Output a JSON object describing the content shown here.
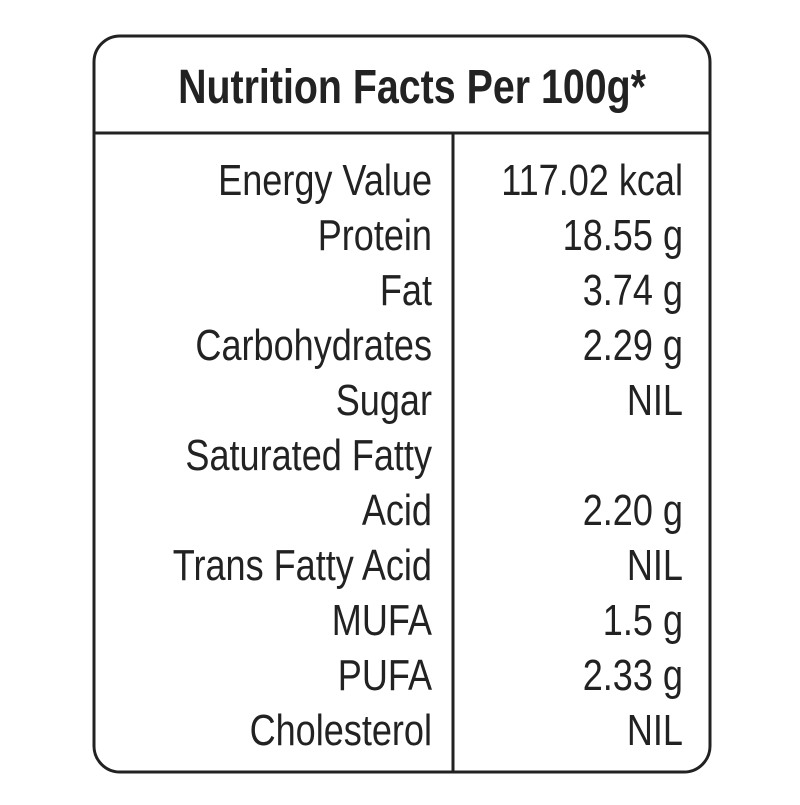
{
  "header": {
    "title": "Nutrition Facts Per 100g*"
  },
  "table": {
    "rows": [
      {
        "label": [
          "Energy Value"
        ],
        "value": "117.02 kcal"
      },
      {
        "label": [
          "Protein"
        ],
        "value": "18.55 g"
      },
      {
        "label": [
          "Fat"
        ],
        "value": "3.74 g"
      },
      {
        "label": [
          "Carbohydrates"
        ],
        "value": "2.29 g"
      },
      {
        "label": [
          "Sugar"
        ],
        "value": "NIL"
      },
      {
        "label": [
          "Saturated Fatty",
          "Acid"
        ],
        "value": "2.20 g"
      },
      {
        "label": [
          "Trans Fatty Acid"
        ],
        "value": "NIL"
      },
      {
        "label": [
          "MUFA"
        ],
        "value": "1.5 g"
      },
      {
        "label": [
          "PUFA"
        ],
        "value": "2.33 g"
      },
      {
        "label": [
          "Cholesterol"
        ],
        "value": "NIL"
      }
    ]
  }
}
